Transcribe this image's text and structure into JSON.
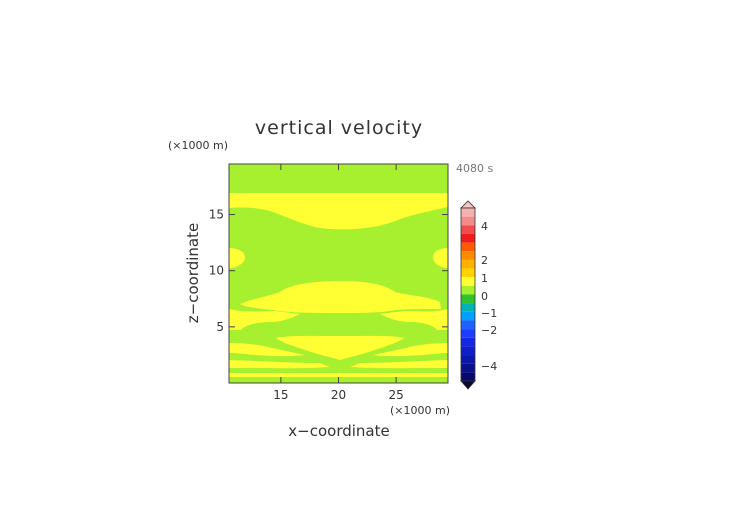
{
  "chart_data": {
    "type": "heatmap",
    "title": "vertical velocity",
    "time_label": "4080 s",
    "xlabel": "x−coordinate",
    "ylabel": "z−coordinate",
    "x_unit": "(×1000 m)",
    "y_unit": "(×1000 m)",
    "xlim": [
      10.5,
      29.5
    ],
    "ylim": [
      0,
      19.5
    ],
    "x_ticks": [
      15,
      20,
      25
    ],
    "y_ticks": [
      5,
      10,
      15
    ],
    "x_tick_labels": [
      "15",
      "20",
      "25"
    ],
    "y_tick_labels": [
      "5",
      "10",
      "15"
    ],
    "field_levels": [
      {
        "range": "0 to 0.5",
        "color": "#a6f030"
      },
      {
        "range": "0.5 to 1",
        "color": "#ffff33"
      }
    ],
    "colorbar": {
      "tick_values": [
        4,
        2,
        1,
        0,
        -1,
        -2,
        -4
      ],
      "tick_labels": [
        "4",
        "2",
        "1",
        "0",
        "−1",
        "−2",
        "−4"
      ],
      "top_extend_color": "#f5c8c8",
      "bottom_extend_color": "#0a0a30",
      "bands": [
        "#f7b0b0",
        "#f58a8a",
        "#f04c4c",
        "#ee1c1c",
        "#ff5a00",
        "#ff8c00",
        "#ffb000",
        "#ffd400",
        "#ffff33",
        "#a6f030",
        "#30c030",
        "#00b4b4",
        "#00a0ff",
        "#2060ff",
        "#1e3cff",
        "#1428e6",
        "#1020c8",
        "#0c18aa",
        "#08108c",
        "#060a6e"
      ]
    }
  }
}
